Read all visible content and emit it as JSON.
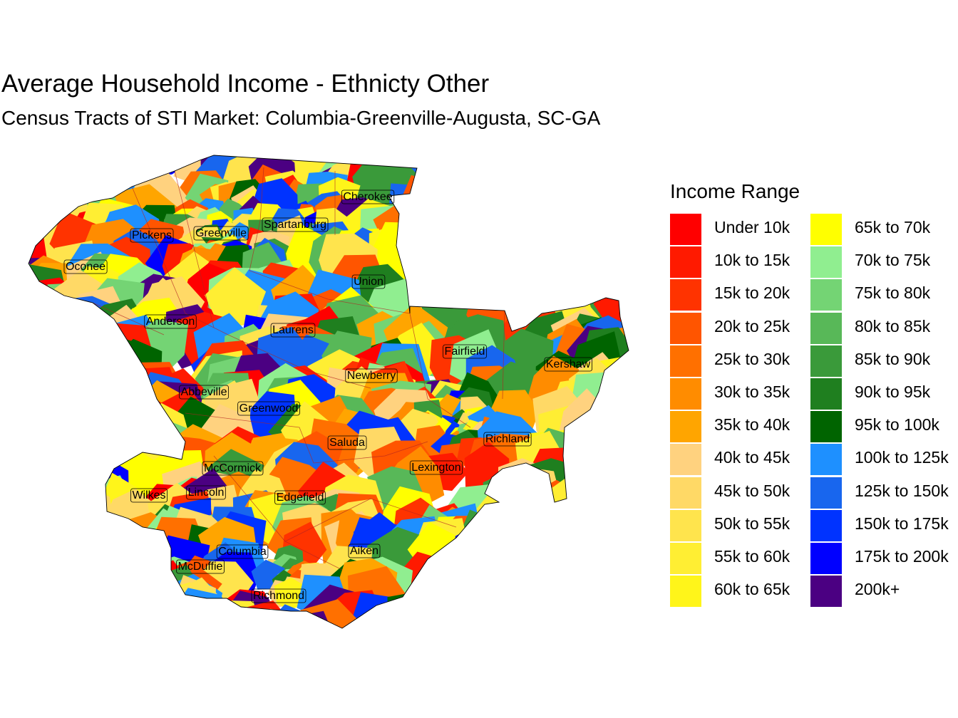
{
  "title": "Average Household Income - Ethnicty Other",
  "subtitle": "Census Tracts of STI Market: Columbia-Greenville-Augusta, SC-GA",
  "legend": {
    "title": "Income Range",
    "items": [
      {
        "label": "Under 10k",
        "color": "#FF0000"
      },
      {
        "label": "10k to 15k",
        "color": "#FF1A00"
      },
      {
        "label": "15k to 20k",
        "color": "#FF3300"
      },
      {
        "label": "20k to 25k",
        "color": "#FF5500"
      },
      {
        "label": "25k to 30k",
        "color": "#FF7000"
      },
      {
        "label": "30k to 35k",
        "color": "#FF8C00"
      },
      {
        "label": "35k to 40k",
        "color": "#FFA500"
      },
      {
        "label": "40k to 45k",
        "color": "#FFD27F"
      },
      {
        "label": "45k to 50k",
        "color": "#FFD966"
      },
      {
        "label": "50k to 55k",
        "color": "#FFE44D"
      },
      {
        "label": "55k to 60k",
        "color": "#FFEE33"
      },
      {
        "label": "60k to 65k",
        "color": "#FFF51A"
      },
      {
        "label": "65k to 70k",
        "color": "#FFFF00"
      },
      {
        "label": "70k to 75k",
        "color": "#90EE90"
      },
      {
        "label": "75k to 80k",
        "color": "#74D474"
      },
      {
        "label": "80k to 85k",
        "color": "#58B858"
      },
      {
        "label": "85k to 90k",
        "color": "#3A9A3A"
      },
      {
        "label": "90k to 95k",
        "color": "#1F7F1F"
      },
      {
        "label": "95k to 100k",
        "color": "#006400"
      },
      {
        "label": "100k to 125k",
        "color": "#1E90FF"
      },
      {
        "label": "125k to 150k",
        "color": "#1866EE"
      },
      {
        "label": "150k to 175k",
        "color": "#0033FF"
      },
      {
        "label": "175k to 200k",
        "color": "#0000FF"
      },
      {
        "label": "200k+",
        "color": "#4B0082"
      }
    ]
  },
  "counties": [
    {
      "name": "Cherokee"
    },
    {
      "name": "Spartanburg"
    },
    {
      "name": "Greenville"
    },
    {
      "name": "Pickens"
    },
    {
      "name": "Oconee"
    },
    {
      "name": "Union"
    },
    {
      "name": "Anderson"
    },
    {
      "name": "Laurens"
    },
    {
      "name": "Fairfield"
    },
    {
      "name": "Kershaw"
    },
    {
      "name": "Newberry"
    },
    {
      "name": "Abbeville"
    },
    {
      "name": "Greenwood"
    },
    {
      "name": "Richland"
    },
    {
      "name": "Saluda"
    },
    {
      "name": "Lexington"
    },
    {
      "name": "McCormick"
    },
    {
      "name": "Wilkes"
    },
    {
      "name": "Lincoln"
    },
    {
      "name": "Edgefield"
    },
    {
      "name": "Aiken"
    },
    {
      "name": "Columbia"
    },
    {
      "name": "McDuffie"
    },
    {
      "name": "Richmond"
    }
  ]
}
